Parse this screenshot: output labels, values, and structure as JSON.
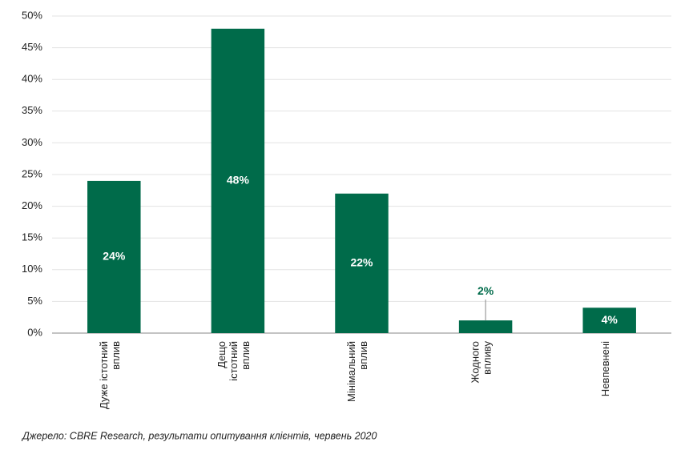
{
  "chart_data": {
    "type": "bar",
    "categories": [
      "Дуже істотний\nвплив",
      "Дещо\nістотний\nвплив",
      "Мінімальний\nвплив",
      "Жодного\nвпливу",
      "Невпевнені"
    ],
    "values": [
      24,
      48,
      22,
      2,
      4
    ],
    "value_labels": [
      "24%",
      "48%",
      "22%",
      "2%",
      "4%"
    ],
    "color": "#006b4a",
    "ylim": [
      0,
      50
    ],
    "yticks": [
      {
        "value": 0,
        "label": "0%"
      },
      {
        "value": 5,
        "label": "5%"
      },
      {
        "value": 10,
        "label": "10%"
      },
      {
        "value": 15,
        "label": "15%"
      },
      {
        "value": 20,
        "label": "20%"
      },
      {
        "value": 25,
        "label": "25%"
      },
      {
        "value": 30,
        "label": "30%"
      },
      {
        "value": 35,
        "label": "35%"
      },
      {
        "value": 40,
        "label": "40%"
      },
      {
        "value": 45,
        "label": "45%"
      },
      {
        "value": 50,
        "label": "50%"
      }
    ],
    "grid": true,
    "source": "Джерело: CBRE Research, результати опитування клієнтів, червень 2020"
  }
}
